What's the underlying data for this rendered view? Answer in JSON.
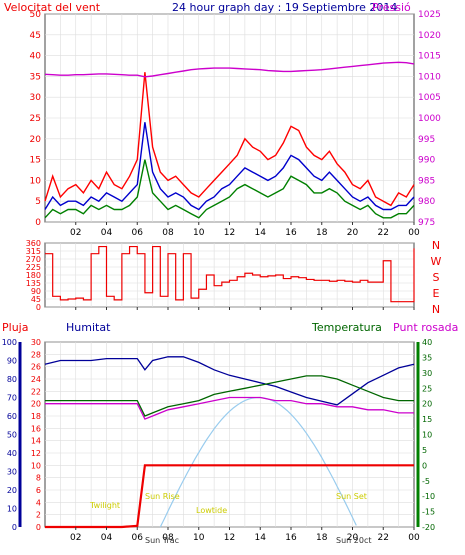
{
  "header": {
    "wind_label": "Velocitat del vent",
    "title": "24 hour graph day : 19 Septiembre 2014",
    "pressure_label": "Pressió"
  },
  "lower_header": {
    "rain_label": "Pluja",
    "humidity_label": "Humitat",
    "temperature_label": "Temperatura",
    "dewpoint_label": "Punt rosada"
  },
  "time_ticks": [
    "02",
    "04",
    "06",
    "08",
    "10",
    "12",
    "14",
    "16",
    "18",
    "20",
    "22",
    "00"
  ],
  "astro": {
    "twilight_start": "Twilight",
    "sun_rise": "Sun Rise",
    "sun_transit_label": "Sun Trac",
    "low_tide": "Lowtide",
    "sun_set": "Sun Set",
    "sun_trans2": "Sun 20ct"
  },
  "colors": {
    "wind_gust": "#ff0000",
    "wind_avg": "#0000cc",
    "wind_min": "#008000",
    "pressure": "#cc00cc",
    "rain": "#ee0000",
    "humidity": "#000099",
    "temperature": "#006600",
    "dewpoint": "#cc00cc",
    "sun": "#99ccee",
    "astro_text": "#cccc00"
  },
  "chart_data": [
    {
      "type": "line",
      "name": "wind-speed",
      "x_ticks": [
        "02",
        "04",
        "06",
        "08",
        "10",
        "12",
        "14",
        "16",
        "18",
        "20",
        "22",
        "00"
      ],
      "ylim_left": [
        0,
        50
      ],
      "y_ticks_left": [
        0,
        5,
        10,
        15,
        20,
        25,
        30,
        35,
        40,
        45,
        50
      ],
      "ylim_right": [
        975,
        1025
      ],
      "y_ticks_right": [
        975,
        980,
        985,
        990,
        995,
        1000,
        1005,
        1010,
        1015,
        1020,
        1025
      ],
      "x_hours": [
        0,
        0.5,
        1,
        1.5,
        2,
        2.5,
        3,
        3.5,
        4,
        4.5,
        5,
        5.5,
        6,
        6.5,
        7,
        7.5,
        8,
        8.5,
        9,
        9.5,
        10,
        10.5,
        11,
        11.5,
        12,
        12.5,
        13,
        13.5,
        14,
        14.5,
        15,
        15.5,
        16,
        16.5,
        17,
        17.5,
        18,
        18.5,
        19,
        19.5,
        20,
        20.5,
        21,
        21.5,
        22,
        22.5,
        23,
        23.5,
        24
      ],
      "series": [
        {
          "name": "gust",
          "values": [
            5,
            11,
            6,
            8,
            9,
            7,
            10,
            8,
            12,
            9,
            8,
            11,
            15,
            36,
            18,
            12,
            10,
            11,
            9,
            7,
            6,
            8,
            10,
            12,
            14,
            16,
            20,
            18,
            17,
            15,
            16,
            19,
            23,
            22,
            18,
            16,
            15,
            17,
            14,
            12,
            9,
            8,
            10,
            6,
            5,
            4,
            7,
            6,
            9
          ]
        },
        {
          "name": "average",
          "values": [
            3,
            6,
            4,
            5,
            5,
            4,
            6,
            5,
            7,
            6,
            5,
            7,
            9,
            24,
            12,
            8,
            6,
            7,
            6,
            4,
            3,
            5,
            6,
            8,
            9,
            11,
            13,
            12,
            11,
            10,
            11,
            13,
            16,
            15,
            13,
            11,
            10,
            12,
            10,
            8,
            6,
            5,
            6,
            4,
            3,
            3,
            4,
            4,
            6
          ]
        },
        {
          "name": "min",
          "values": [
            1,
            3,
            2,
            3,
            3,
            2,
            4,
            3,
            4,
            3,
            3,
            4,
            6,
            15,
            7,
            5,
            3,
            4,
            3,
            2,
            1,
            3,
            4,
            5,
            6,
            8,
            9,
            8,
            7,
            6,
            7,
            8,
            11,
            10,
            9,
            7,
            7,
            8,
            7,
            5,
            4,
            3,
            4,
            2,
            1,
            1,
            2,
            2,
            4
          ]
        },
        {
          "name": "pressure",
          "values": [
            1010.5,
            1010.4,
            1010.3,
            1010.3,
            1010.4,
            1010.4,
            1010.5,
            1010.6,
            1010.6,
            1010.5,
            1010.4,
            1010.3,
            1010.3,
            1009.9,
            1010.1,
            1010.4,
            1010.7,
            1011.0,
            1011.3,
            1011.6,
            1011.8,
            1011.9,
            1012.0,
            1012.0,
            1012.0,
            1011.9,
            1011.8,
            1011.7,
            1011.6,
            1011.4,
            1011.3,
            1011.2,
            1011.2,
            1011.3,
            1011.4,
            1011.5,
            1011.6,
            1011.8,
            1012.0,
            1012.2,
            1012.4,
            1012.6,
            1012.8,
            1013.0,
            1013.2,
            1013.3,
            1013.4,
            1013.3,
            1013.0
          ]
        }
      ]
    },
    {
      "type": "line",
      "name": "wind-direction",
      "x_ticks": [
        "02",
        "04",
        "06",
        "08",
        "10",
        "12",
        "14",
        "16",
        "18",
        "20",
        "22",
        "00"
      ],
      "ylim": [
        0,
        360
      ],
      "y_ticks": [
        0,
        45,
        90,
        135,
        180,
        225,
        270,
        315,
        360
      ],
      "direction_labels": [
        "N",
        "W",
        "S",
        "E",
        "N"
      ],
      "x_hours": [
        0,
        0.5,
        1,
        1.5,
        2,
        2.5,
        3,
        3.5,
        4,
        4.5,
        5,
        5.5,
        6,
        6.5,
        7,
        7.5,
        8,
        8.5,
        9,
        9.5,
        10,
        10.5,
        11,
        11.5,
        12,
        12.5,
        13,
        13.5,
        14,
        14.5,
        15,
        15.5,
        16,
        16.5,
        17,
        17.5,
        18,
        18.5,
        19,
        19.5,
        20,
        20.5,
        21,
        21.5,
        22,
        22.5,
        23,
        23.5,
        24
      ],
      "values": [
        300,
        60,
        40,
        45,
        50,
        40,
        300,
        340,
        60,
        40,
        300,
        340,
        300,
        80,
        340,
        60,
        300,
        40,
        300,
        50,
        100,
        180,
        120,
        140,
        150,
        170,
        190,
        180,
        170,
        175,
        180,
        160,
        170,
        165,
        155,
        150,
        150,
        145,
        150,
        145,
        140,
        150,
        140,
        140,
        260,
        30,
        30,
        30,
        330
      ]
    },
    {
      "type": "line",
      "name": "temperature-humidity-rain",
      "x_ticks": [
        "02",
        "04",
        "06",
        "08",
        "10",
        "12",
        "14",
        "16",
        "18",
        "20",
        "22",
        "00"
      ],
      "ylim_rain": [
        0,
        30
      ],
      "y_ticks_rain": [
        0,
        2,
        4,
        6,
        8,
        10,
        12,
        14,
        16,
        18,
        20,
        22,
        24,
        26,
        28,
        30
      ],
      "ylim_humidity": [
        0,
        100
      ],
      "y_ticks_humidity": [
        0,
        5,
        10,
        15,
        20,
        25,
        30,
        35,
        40,
        45,
        50,
        55,
        60,
        65,
        70,
        75,
        80,
        85,
        90,
        95,
        100
      ],
      "ylim_temp": [
        -20,
        40
      ],
      "y_ticks_temp": [
        -20,
        -15,
        -10,
        -5,
        0,
        5,
        10,
        15,
        20,
        25,
        30,
        35,
        40
      ],
      "x_hours": [
        0,
        1,
        2,
        3,
        4,
        5,
        6,
        6.5,
        7,
        8,
        9,
        10,
        11,
        12,
        13,
        14,
        15,
        16,
        17,
        18,
        19,
        20,
        21,
        22,
        23,
        24
      ],
      "series": [
        {
          "name": "humitat",
          "values": [
            88,
            90,
            90,
            90,
            91,
            91,
            91,
            85,
            90,
            92,
            92,
            89,
            85,
            82,
            80,
            78,
            76,
            73,
            70,
            68,
            66,
            72,
            78,
            82,
            86,
            88
          ]
        },
        {
          "name": "temperatura",
          "values": [
            21,
            21,
            21,
            21,
            21,
            21,
            21,
            16,
            17,
            19,
            20,
            21,
            23,
            24,
            25,
            26,
            27,
            28,
            29,
            29,
            28,
            26,
            24,
            22,
            21,
            21
          ]
        },
        {
          "name": "punt_rosada",
          "values": [
            20,
            20,
            20,
            20,
            20,
            20,
            20,
            15,
            16,
            18,
            19,
            20,
            21,
            22,
            22,
            22,
            21,
            21,
            20,
            20,
            19,
            19,
            18,
            18,
            17,
            17
          ]
        },
        {
          "name": "pluja",
          "values": [
            0,
            0,
            0,
            0,
            0,
            0,
            0.2,
            10,
            10,
            10,
            10,
            10,
            10,
            10,
            10,
            10,
            10,
            10,
            10,
            10,
            10,
            10,
            10,
            10,
            10,
            10
          ]
        }
      ],
      "sun_elevation_peak_hour": 13.9,
      "sun_rise_hour": 7.5,
      "sun_set_hour": 20.3
    }
  ]
}
